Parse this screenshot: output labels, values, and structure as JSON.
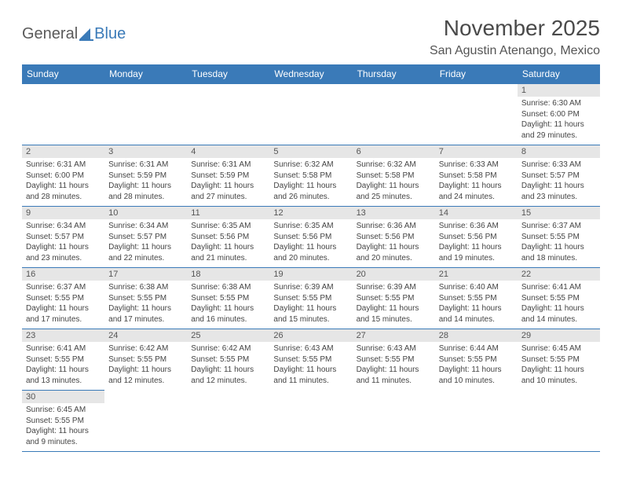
{
  "logo": {
    "text1": "General",
    "text2": "Blue"
  },
  "title": "November 2025",
  "location": "San Agustin Atenango, Mexico",
  "colors": {
    "header_bg": "#3a7ab8",
    "header_fg": "#ffffff",
    "daynum_bg": "#e6e6e6",
    "cell_border": "#3a7ab8",
    "text": "#444444",
    "title_color": "#4a4a4a"
  },
  "dayHeaders": [
    "Sunday",
    "Monday",
    "Tuesday",
    "Wednesday",
    "Thursday",
    "Friday",
    "Saturday"
  ],
  "weeks": [
    [
      null,
      null,
      null,
      null,
      null,
      null,
      {
        "n": "1",
        "sunrise": "Sunrise: 6:30 AM",
        "sunset": "Sunset: 6:00 PM",
        "daylight": "Daylight: 11 hours and 29 minutes."
      }
    ],
    [
      {
        "n": "2",
        "sunrise": "Sunrise: 6:31 AM",
        "sunset": "Sunset: 6:00 PM",
        "daylight": "Daylight: 11 hours and 28 minutes."
      },
      {
        "n": "3",
        "sunrise": "Sunrise: 6:31 AM",
        "sunset": "Sunset: 5:59 PM",
        "daylight": "Daylight: 11 hours and 28 minutes."
      },
      {
        "n": "4",
        "sunrise": "Sunrise: 6:31 AM",
        "sunset": "Sunset: 5:59 PM",
        "daylight": "Daylight: 11 hours and 27 minutes."
      },
      {
        "n": "5",
        "sunrise": "Sunrise: 6:32 AM",
        "sunset": "Sunset: 5:58 PM",
        "daylight": "Daylight: 11 hours and 26 minutes."
      },
      {
        "n": "6",
        "sunrise": "Sunrise: 6:32 AM",
        "sunset": "Sunset: 5:58 PM",
        "daylight": "Daylight: 11 hours and 25 minutes."
      },
      {
        "n": "7",
        "sunrise": "Sunrise: 6:33 AM",
        "sunset": "Sunset: 5:58 PM",
        "daylight": "Daylight: 11 hours and 24 minutes."
      },
      {
        "n": "8",
        "sunrise": "Sunrise: 6:33 AM",
        "sunset": "Sunset: 5:57 PM",
        "daylight": "Daylight: 11 hours and 23 minutes."
      }
    ],
    [
      {
        "n": "9",
        "sunrise": "Sunrise: 6:34 AM",
        "sunset": "Sunset: 5:57 PM",
        "daylight": "Daylight: 11 hours and 23 minutes."
      },
      {
        "n": "10",
        "sunrise": "Sunrise: 6:34 AM",
        "sunset": "Sunset: 5:57 PM",
        "daylight": "Daylight: 11 hours and 22 minutes."
      },
      {
        "n": "11",
        "sunrise": "Sunrise: 6:35 AM",
        "sunset": "Sunset: 5:56 PM",
        "daylight": "Daylight: 11 hours and 21 minutes."
      },
      {
        "n": "12",
        "sunrise": "Sunrise: 6:35 AM",
        "sunset": "Sunset: 5:56 PM",
        "daylight": "Daylight: 11 hours and 20 minutes."
      },
      {
        "n": "13",
        "sunrise": "Sunrise: 6:36 AM",
        "sunset": "Sunset: 5:56 PM",
        "daylight": "Daylight: 11 hours and 20 minutes."
      },
      {
        "n": "14",
        "sunrise": "Sunrise: 6:36 AM",
        "sunset": "Sunset: 5:56 PM",
        "daylight": "Daylight: 11 hours and 19 minutes."
      },
      {
        "n": "15",
        "sunrise": "Sunrise: 6:37 AM",
        "sunset": "Sunset: 5:55 PM",
        "daylight": "Daylight: 11 hours and 18 minutes."
      }
    ],
    [
      {
        "n": "16",
        "sunrise": "Sunrise: 6:37 AM",
        "sunset": "Sunset: 5:55 PM",
        "daylight": "Daylight: 11 hours and 17 minutes."
      },
      {
        "n": "17",
        "sunrise": "Sunrise: 6:38 AM",
        "sunset": "Sunset: 5:55 PM",
        "daylight": "Daylight: 11 hours and 17 minutes."
      },
      {
        "n": "18",
        "sunrise": "Sunrise: 6:38 AM",
        "sunset": "Sunset: 5:55 PM",
        "daylight": "Daylight: 11 hours and 16 minutes."
      },
      {
        "n": "19",
        "sunrise": "Sunrise: 6:39 AM",
        "sunset": "Sunset: 5:55 PM",
        "daylight": "Daylight: 11 hours and 15 minutes."
      },
      {
        "n": "20",
        "sunrise": "Sunrise: 6:39 AM",
        "sunset": "Sunset: 5:55 PM",
        "daylight": "Daylight: 11 hours and 15 minutes."
      },
      {
        "n": "21",
        "sunrise": "Sunrise: 6:40 AM",
        "sunset": "Sunset: 5:55 PM",
        "daylight": "Daylight: 11 hours and 14 minutes."
      },
      {
        "n": "22",
        "sunrise": "Sunrise: 6:41 AM",
        "sunset": "Sunset: 5:55 PM",
        "daylight": "Daylight: 11 hours and 14 minutes."
      }
    ],
    [
      {
        "n": "23",
        "sunrise": "Sunrise: 6:41 AM",
        "sunset": "Sunset: 5:55 PM",
        "daylight": "Daylight: 11 hours and 13 minutes."
      },
      {
        "n": "24",
        "sunrise": "Sunrise: 6:42 AM",
        "sunset": "Sunset: 5:55 PM",
        "daylight": "Daylight: 11 hours and 12 minutes."
      },
      {
        "n": "25",
        "sunrise": "Sunrise: 6:42 AM",
        "sunset": "Sunset: 5:55 PM",
        "daylight": "Daylight: 11 hours and 12 minutes."
      },
      {
        "n": "26",
        "sunrise": "Sunrise: 6:43 AM",
        "sunset": "Sunset: 5:55 PM",
        "daylight": "Daylight: 11 hours and 11 minutes."
      },
      {
        "n": "27",
        "sunrise": "Sunrise: 6:43 AM",
        "sunset": "Sunset: 5:55 PM",
        "daylight": "Daylight: 11 hours and 11 minutes."
      },
      {
        "n": "28",
        "sunrise": "Sunrise: 6:44 AM",
        "sunset": "Sunset: 5:55 PM",
        "daylight": "Daylight: 11 hours and 10 minutes."
      },
      {
        "n": "29",
        "sunrise": "Sunrise: 6:45 AM",
        "sunset": "Sunset: 5:55 PM",
        "daylight": "Daylight: 11 hours and 10 minutes."
      }
    ],
    [
      {
        "n": "30",
        "sunrise": "Sunrise: 6:45 AM",
        "sunset": "Sunset: 5:55 PM",
        "daylight": "Daylight: 11 hours and 9 minutes."
      },
      null,
      null,
      null,
      null,
      null,
      null
    ]
  ]
}
